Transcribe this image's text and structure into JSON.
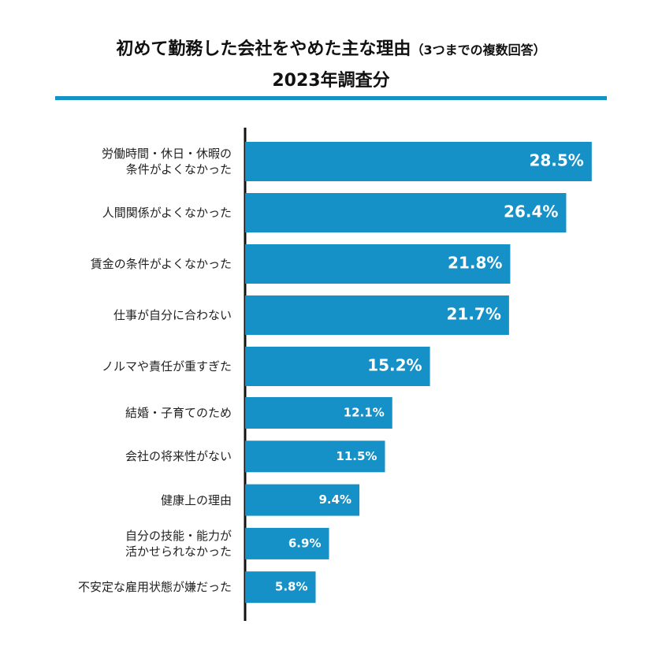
{
  "chart_data": {
    "type": "bar",
    "orientation": "horizontal",
    "title": "初めて勤務した会社をやめた主な理由",
    "title_note": "（3つまでの複数回答）",
    "subtitle": "2023年調査分",
    "categories": [
      "労働時間・休日・休暇の\n条件がよくなかった",
      "人間関係がよくなかった",
      "賃金の条件がよくなかった",
      "仕事が自分に合わない",
      "ノルマや責任が重すぎた",
      "結婚・子育てのため",
      "会社の将来性がない",
      "健康上の理由",
      "自分の技能・能力が\n活かせられなかった",
      "不安定な雇用状態が嫌だった"
    ],
    "values": [
      28.5,
      26.4,
      21.8,
      21.7,
      15.2,
      12.1,
      11.5,
      9.4,
      6.9,
      5.8
    ],
    "value_labels": [
      "28.5%",
      "26.4%",
      "21.8%",
      "21.7%",
      "15.2%",
      "12.1%",
      "11.5%",
      "9.4%",
      "6.9%",
      "5.8%"
    ],
    "color": "#1591c8",
    "xlim": [
      0,
      30
    ]
  }
}
